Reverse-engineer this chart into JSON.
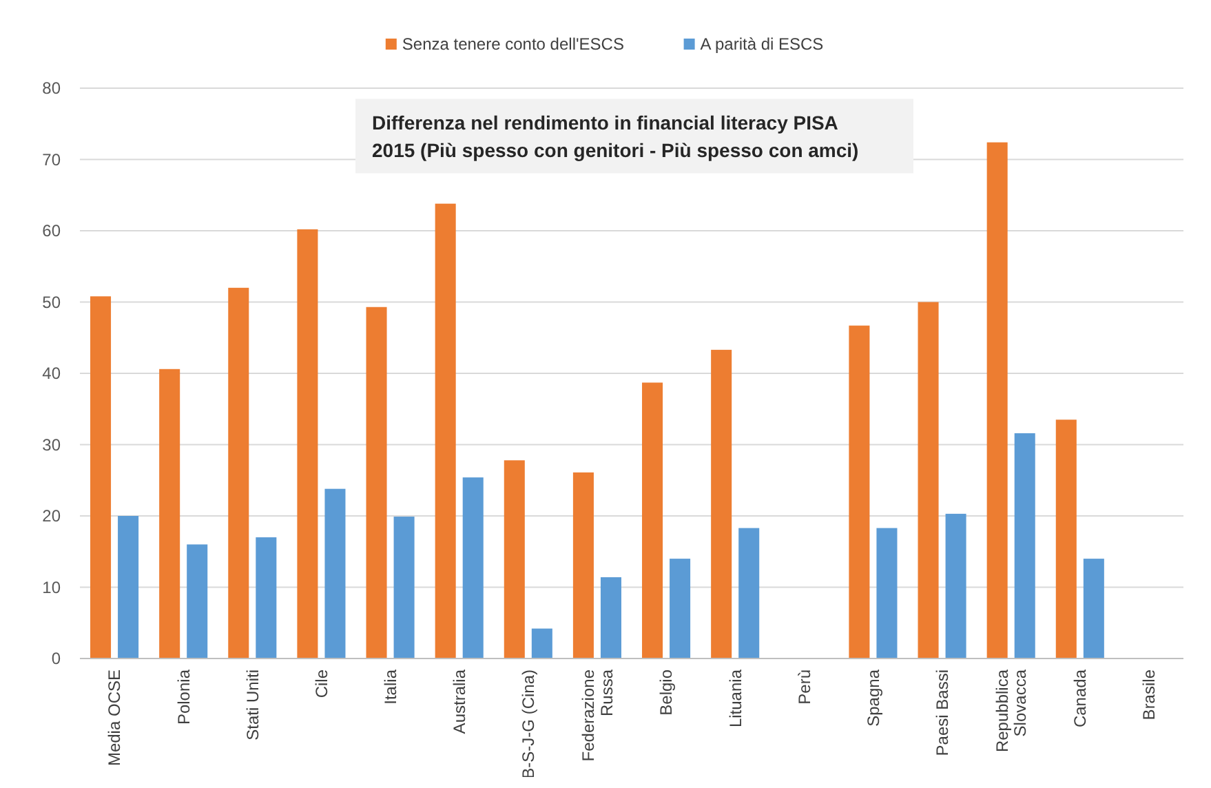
{
  "chart_data": {
    "type": "bar",
    "title": "Differenza nel rendimento in financial literacy PISA 2015 (Più spesso con genitori - Più spesso con amci)",
    "categories": [
      "Media OCSE",
      "Polonia",
      "Stati Uniti",
      "Cile",
      "Italia",
      "Australia",
      "B-S-J-G (Cina)",
      "Federazione Russa",
      "Belgio",
      "Lituania",
      "Perù",
      "Spagna",
      "Paesi Bassi",
      "Repubblica Slovacca",
      "Canada",
      "Brasile"
    ],
    "series": [
      {
        "name": "Senza tenere conto dell'ESCS",
        "color": "#ed7d31",
        "values": [
          50.8,
          40.6,
          52,
          60.2,
          49.3,
          63.8,
          27.8,
          26.1,
          38.7,
          43.3,
          null,
          46.7,
          50,
          72.4,
          33.5,
          null
        ]
      },
      {
        "name": "A parità di ESCS",
        "color": "#5b9bd5",
        "values": [
          20,
          16,
          17,
          23.8,
          19.9,
          25.4,
          4.2,
          11.4,
          14,
          18.3,
          null,
          18.3,
          20.3,
          31.6,
          14,
          null
        ]
      }
    ],
    "ylim": [
      0,
      80
    ],
    "yticks": [
      0,
      10,
      20,
      30,
      40,
      50,
      60,
      70,
      80
    ],
    "grid": "y",
    "legend": "top"
  }
}
